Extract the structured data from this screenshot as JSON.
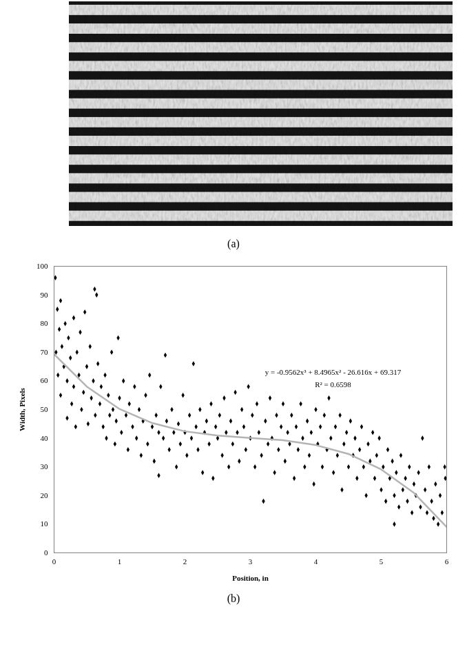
{
  "image_panel": {
    "label": "(a)"
  },
  "chart_data": {
    "type": "scatter",
    "caption": "(b)",
    "x_label": "Position, in",
    "y_label": "Width, Pixels",
    "xlim": [
      0,
      6
    ],
    "xticks": [
      0,
      1,
      2,
      3,
      4,
      5,
      6
    ],
    "ylim": [
      0,
      100
    ],
    "yticks": [
      0,
      10,
      20,
      30,
      40,
      50,
      60,
      70,
      80,
      90,
      100
    ],
    "grid": false,
    "annotations": [
      "y = -0.9562x³ + 8.4965x² - 26.616x + 69.317",
      "R² = 0.6598"
    ],
    "series": [
      {
        "type": "scatter",
        "color": "#000000",
        "marker": "diamond",
        "x": [
          0.02,
          0.03,
          0.05,
          0.06,
          0.08,
          0.1,
          0.1,
          0.12,
          0.15,
          0.17,
          0.2,
          0.2,
          0.22,
          0.25,
          0.27,
          0.3,
          0.3,
          0.33,
          0.35,
          0.38,
          0.4,
          0.42,
          0.45,
          0.47,
          0.5,
          0.52,
          0.55,
          0.57,
          0.6,
          0.62,
          0.63,
          0.65,
          0.67,
          0.7,
          0.72,
          0.75,
          0.78,
          0.8,
          0.83,
          0.85,
          0.88,
          0.9,
          0.93,
          0.95,
          0.98,
          1.0,
          1.03,
          1.06,
          1.1,
          1.13,
          1.15,
          1.2,
          1.23,
          1.26,
          1.3,
          1.33,
          1.36,
          1.4,
          1.43,
          1.46,
          1.5,
          1.53,
          1.56,
          1.6,
          1.6,
          1.63,
          1.67,
          1.7,
          1.72,
          1.76,
          1.8,
          1.83,
          1.87,
          1.9,
          1.93,
          1.97,
          2.0,
          2.03,
          2.07,
          2.1,
          2.13,
          2.17,
          2.2,
          2.23,
          2.27,
          2.3,
          2.33,
          2.37,
          2.4,
          2.43,
          2.47,
          2.5,
          2.53,
          2.57,
          2.6,
          2.63,
          2.67,
          2.7,
          2.73,
          2.77,
          2.8,
          2.83,
          2.87,
          2.9,
          2.93,
          2.97,
          3.0,
          3.03,
          3.07,
          3.1,
          3.13,
          3.17,
          3.2,
          3.23,
          3.27,
          3.3,
          3.33,
          3.37,
          3.4,
          3.43,
          3.47,
          3.5,
          3.53,
          3.57,
          3.6,
          3.63,
          3.67,
          3.7,
          3.73,
          3.77,
          3.8,
          3.83,
          3.87,
          3.9,
          3.93,
          3.97,
          4.0,
          4.03,
          4.07,
          4.1,
          4.13,
          4.17,
          4.2,
          4.23,
          4.27,
          4.3,
          4.33,
          4.37,
          4.4,
          4.43,
          4.47,
          4.5,
          4.53,
          4.57,
          4.6,
          4.63,
          4.67,
          4.7,
          4.73,
          4.77,
          4.8,
          4.83,
          4.87,
          4.9,
          4.93,
          4.97,
          5.0,
          5.03,
          5.07,
          5.1,
          5.13,
          5.17,
          5.2,
          5.2,
          5.23,
          5.27,
          5.3,
          5.33,
          5.37,
          5.4,
          5.43,
          5.47,
          5.5,
          5.53,
          5.57,
          5.6,
          5.63,
          5.67,
          5.7,
          5.73,
          5.77,
          5.8,
          5.83,
          5.87,
          5.9,
          5.93,
          5.97,
          5.98
        ],
        "values": [
          96,
          70,
          85,
          62,
          78,
          88,
          55,
          72,
          65,
          80,
          47,
          60,
          75,
          68,
          52,
          82,
          58,
          44,
          70,
          62,
          77,
          50,
          56,
          84,
          65,
          45,
          72,
          54,
          60,
          92,
          48,
          90,
          66,
          52,
          58,
          44,
          62,
          40,
          55,
          48,
          70,
          50,
          38,
          46,
          75,
          54,
          42,
          60,
          48,
          36,
          52,
          44,
          58,
          40,
          50,
          34,
          46,
          55,
          38,
          62,
          44,
          32,
          48,
          27,
          42,
          58,
          40,
          69,
          46,
          36,
          50,
          42,
          30,
          45,
          38,
          55,
          42,
          34,
          48,
          40,
          66,
          44,
          36,
          50,
          28,
          42,
          46,
          38,
          52,
          26,
          44,
          40,
          48,
          34,
          54,
          42,
          30,
          46,
          38,
          56,
          42,
          32,
          50,
          44,
          36,
          58,
          40,
          48,
          30,
          52,
          42,
          34,
          18,
          46,
          38,
          54,
          40,
          28,
          48,
          36,
          44,
          52,
          32,
          42,
          38,
          48,
          26,
          44,
          36,
          52,
          40,
          30,
          46,
          34,
          42,
          24,
          50,
          38,
          44,
          30,
          48,
          36,
          54,
          40,
          28,
          44,
          34,
          48,
          22,
          38,
          42,
          30,
          46,
          34,
          40,
          26,
          36,
          44,
          30,
          20,
          38,
          32,
          42,
          26,
          34,
          40,
          22,
          30,
          18,
          36,
          26,
          32,
          10,
          20,
          28,
          16,
          34,
          22,
          26,
          18,
          30,
          14,
          24,
          20,
          28,
          16,
          40,
          22,
          14,
          30,
          18,
          12,
          24,
          10,
          20,
          14,
          30,
          26
        ]
      },
      {
        "type": "line",
        "color": "#b4b4b4",
        "x": [
          0,
          0.5,
          1,
          1.5,
          2,
          2.5,
          3,
          3.5,
          4,
          4.5,
          5,
          5.5,
          6
        ],
        "values": [
          69.3,
          58.0,
          50.2,
          45.3,
          42.4,
          40.9,
          40.1,
          39.3,
          37.6,
          34.5,
          29.1,
          20.9,
          9.0
        ]
      }
    ]
  }
}
